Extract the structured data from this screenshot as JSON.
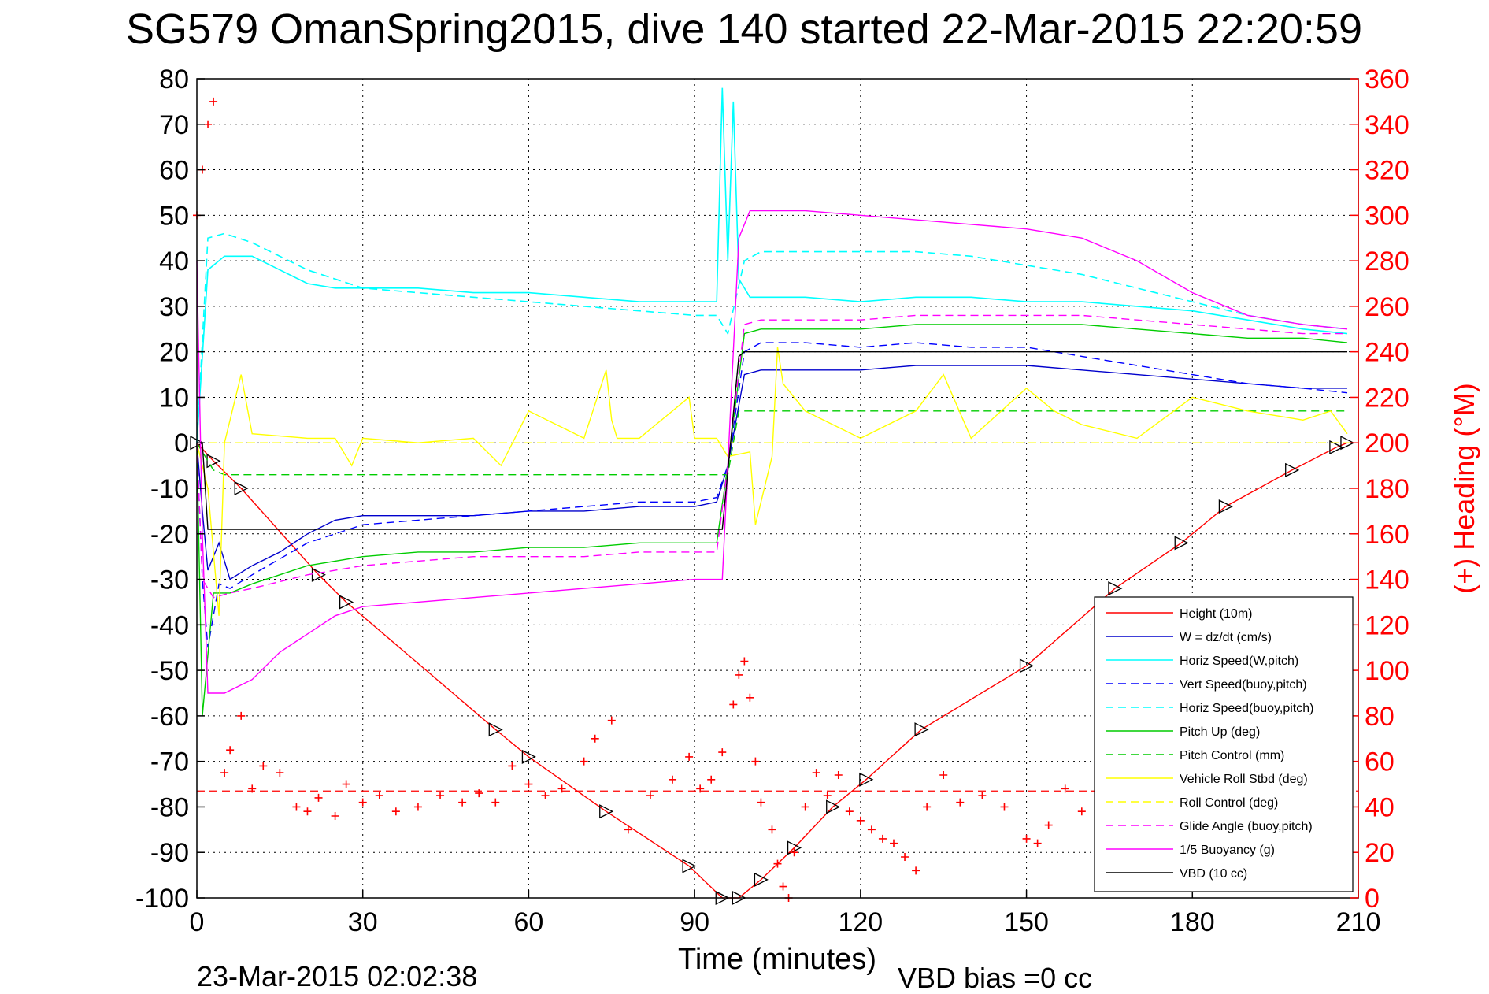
{
  "title": "SG579 OmanSpring2015, dive 140 started 22-Mar-2015 22:20:59",
  "footer": {
    "end_time": "23-Mar-2015 02:02:38",
    "vbd_bias": "VBD bias =0 cc"
  },
  "chart_data": {
    "type": "line",
    "xlabel": "Time (minutes)",
    "ylabel": "",
    "y2label": "(+) Heading (°M)",
    "xlim": [
      0,
      210
    ],
    "ylim": [
      -100,
      80
    ],
    "y2lim": [
      0,
      360
    ],
    "xticks": [
      0,
      30,
      60,
      90,
      120,
      150,
      180,
      210
    ],
    "yticks": [
      80,
      70,
      60,
      50,
      40,
      30,
      20,
      10,
      0,
      -10,
      -20,
      -30,
      -40,
      -50,
      -60,
      -70,
      -80,
      -90,
      -100
    ],
    "y2ticks": [
      360,
      340,
      320,
      300,
      280,
      260,
      240,
      220,
      200,
      180,
      160,
      140,
      120,
      100,
      80,
      60,
      40,
      20,
      0
    ],
    "grid": true,
    "legend_position": "lower-right",
    "series": [
      {
        "name": "Height (10m)",
        "color": "#ff0000",
        "style": "solid",
        "marker": "triangle",
        "x": [
          0,
          3,
          8,
          22,
          27,
          54,
          60,
          74,
          89,
          95,
          98,
          102,
          108,
          115,
          121,
          131,
          150,
          166,
          178,
          186,
          198,
          206,
          208
        ],
        "y": [
          0,
          -4,
          -10,
          -29,
          -35,
          -63,
          -69,
          -81,
          -93,
          -100,
          -100,
          -96,
          -89,
          -80,
          -74,
          -63,
          -49,
          -32,
          -22,
          -14,
          -6,
          -1,
          0
        ]
      },
      {
        "name": "W = dz/dt (cm/s)",
        "color": "#0000cc",
        "style": "solid",
        "x": [
          0,
          1,
          2,
          4,
          6,
          10,
          15,
          20,
          25,
          30,
          40,
          50,
          60,
          70,
          80,
          90,
          94,
          96,
          99,
          102,
          110,
          120,
          130,
          140,
          150,
          160,
          170,
          180,
          190,
          200,
          208
        ],
        "y": [
          0,
          -15,
          -28,
          -22,
          -30,
          -27,
          -24,
          -20,
          -17,
          -16,
          -16,
          -16,
          -15,
          -15,
          -14,
          -14,
          -13,
          -5,
          15,
          16,
          16,
          16,
          17,
          17,
          17,
          16,
          15,
          14,
          13,
          12,
          12
        ]
      },
      {
        "name": "Horiz Speed(W,pitch)",
        "color": "#00ffff",
        "style": "solid",
        "x": [
          0,
          2,
          5,
          10,
          15,
          20,
          25,
          30,
          40,
          50,
          60,
          70,
          80,
          90,
          94,
          95,
          96,
          97,
          98,
          100,
          110,
          120,
          130,
          140,
          150,
          160,
          170,
          180,
          190,
          200,
          208
        ],
        "y": [
          0,
          38,
          41,
          41,
          38,
          35,
          34,
          34,
          34,
          33,
          33,
          32,
          31,
          31,
          31,
          78,
          40,
          75,
          36,
          32,
          32,
          31,
          32,
          32,
          31,
          31,
          30,
          29,
          27,
          25,
          24
        ]
      },
      {
        "name": "Vert Speed(buoy,pitch)",
        "color": "#0000ff",
        "style": "dashed",
        "x": [
          0,
          1,
          2,
          4,
          6,
          10,
          20,
          30,
          40,
          50,
          60,
          70,
          80,
          90,
          94,
          96,
          99,
          102,
          110,
          120,
          130,
          140,
          150,
          160,
          170,
          180,
          190,
          200,
          208
        ],
        "y": [
          0,
          -30,
          -45,
          -31,
          -32,
          -29,
          -22,
          -18,
          -17,
          -16,
          -15,
          -14,
          -13,
          -13,
          -12,
          -5,
          20,
          22,
          22,
          21,
          22,
          21,
          21,
          19,
          17,
          15,
          13,
          12,
          11
        ]
      },
      {
        "name": "Horiz Speed(buoy,pitch)",
        "color": "#00ffff",
        "style": "dashed",
        "x": [
          0,
          2,
          5,
          10,
          20,
          30,
          40,
          50,
          60,
          70,
          80,
          90,
          94,
          96,
          99,
          102,
          110,
          120,
          130,
          140,
          150,
          160,
          170,
          180,
          190,
          200,
          208
        ],
        "y": [
          0,
          45,
          46,
          44,
          38,
          34,
          33,
          32,
          31,
          30,
          29,
          28,
          28,
          24,
          40,
          42,
          42,
          42,
          42,
          41,
          39,
          37,
          34,
          31,
          28,
          26,
          25
        ]
      },
      {
        "name": "Pitch Up (deg)",
        "color": "#00cc00",
        "style": "solid",
        "x": [
          0,
          1,
          3,
          6,
          10,
          20,
          30,
          40,
          50,
          60,
          70,
          80,
          90,
          94,
          96,
          99,
          102,
          110,
          120,
          130,
          140,
          150,
          160,
          170,
          180,
          190,
          200,
          208
        ],
        "y": [
          0,
          -60,
          -33,
          -33,
          -31,
          -27,
          -25,
          -24,
          -24,
          -23,
          -23,
          -22,
          -22,
          -22,
          -5,
          24,
          25,
          25,
          25,
          26,
          26,
          26,
          26,
          25,
          24,
          23,
          23,
          22
        ]
      },
      {
        "name": "Pitch Control (mm)",
        "color": "#00cc00",
        "style": "dashed",
        "x": [
          0,
          3,
          5,
          10,
          20,
          40,
          60,
          80,
          94,
          96,
          98,
          100,
          120,
          140,
          160,
          180,
          200,
          208
        ],
        "y": [
          0,
          -6,
          -7,
          -7,
          -7,
          -7,
          -7,
          -7,
          -7,
          -7,
          7,
          7,
          7,
          7,
          7,
          7,
          7,
          7
        ]
      },
      {
        "name": "Vehicle Roll Stbd (deg)",
        "color": "#ffff00",
        "style": "solid",
        "x": [
          0,
          2,
          4,
          5,
          8,
          10,
          20,
          25,
          28,
          30,
          40,
          50,
          55,
          60,
          70,
          74,
          75,
          76,
          80,
          89,
          90,
          91,
          94,
          96,
          100,
          101,
          104,
          105,
          106,
          110,
          115,
          120,
          130,
          135,
          140,
          150,
          155,
          160,
          170,
          180,
          190,
          200,
          205,
          208
        ],
        "y": [
          0,
          -10,
          -38,
          0,
          15,
          2,
          1,
          1,
          -5,
          1,
          0,
          1,
          -5,
          7,
          1,
          16,
          5,
          1,
          1,
          10,
          1,
          1,
          1,
          -3,
          -2,
          -18,
          -3,
          21,
          13,
          7,
          4,
          1,
          7,
          15,
          1,
          12,
          7,
          4,
          1,
          10,
          7,
          5,
          7,
          2
        ]
      },
      {
        "name": "Roll Control (deg)",
        "color": "#ffff00",
        "style": "dashed",
        "x": [
          0,
          210
        ],
        "y": [
          0,
          0
        ]
      },
      {
        "name": "Glide Angle (buoy,pitch)",
        "color": "#ff00ff",
        "style": "dashed",
        "x": [
          0,
          1,
          3,
          6,
          10,
          20,
          30,
          40,
          50,
          60,
          70,
          80,
          90,
          94,
          96,
          99,
          102,
          110,
          120,
          130,
          140,
          150,
          160,
          170,
          180,
          190,
          200,
          208
        ],
        "y": [
          0,
          -30,
          -34,
          -33,
          -32,
          -29,
          -27,
          -26,
          -25,
          -25,
          -25,
          -24,
          -24,
          -24,
          -5,
          26,
          27,
          27,
          27,
          28,
          28,
          28,
          28,
          27,
          26,
          25,
          24,
          24
        ]
      },
      {
        "name": "1/5 Buoyancy (g)",
        "color": "#ff00ff",
        "style": "solid",
        "x": [
          0,
          1,
          2,
          5,
          10,
          15,
          20,
          25,
          30,
          40,
          50,
          60,
          70,
          80,
          90,
          95,
          98,
          100,
          110,
          120,
          130,
          140,
          150,
          160,
          170,
          180,
          190,
          200,
          208
        ],
        "y": [
          40,
          -20,
          -55,
          -55,
          -52,
          -46,
          -42,
          -38,
          -36,
          -35,
          -34,
          -33,
          -32,
          -31,
          -30,
          -30,
          45,
          51,
          51,
          50,
          49,
          48,
          47,
          45,
          40,
          33,
          28,
          26,
          25
        ]
      },
      {
        "name": "VBD (10 cc)",
        "color": "#000000",
        "style": "solid",
        "x": [
          0,
          1,
          2,
          95,
          98,
          99,
          208
        ],
        "y": [
          0,
          0,
          -19,
          -19,
          19,
          20,
          20
        ]
      }
    ],
    "heading": {
      "name": "(+) Heading",
      "color": "#ff0000",
      "reference_line": 47,
      "x": [
        0,
        1,
        2,
        3,
        5,
        6,
        8,
        10,
        12,
        15,
        18,
        20,
        22,
        25,
        27,
        30,
        33,
        36,
        40,
        44,
        48,
        51,
        54,
        57,
        60,
        63,
        66,
        70,
        72,
        75,
        78,
        82,
        86,
        89,
        91,
        93,
        95,
        97,
        98,
        99,
        100,
        101,
        102,
        104,
        105,
        106,
        107,
        108,
        110,
        112,
        114,
        116,
        118,
        120,
        122,
        124,
        126,
        128,
        130,
        132,
        135,
        138,
        142,
        146,
        150,
        152,
        154,
        157,
        160,
        164,
        168,
        172,
        176,
        180,
        184,
        188,
        192,
        196,
        200,
        204,
        207
      ],
      "y": [
        300,
        320,
        340,
        350,
        55,
        65,
        80,
        48,
        58,
        55,
        40,
        38,
        44,
        36,
        50,
        42,
        45,
        38,
        40,
        45,
        42,
        46,
        42,
        58,
        50,
        45,
        48,
        60,
        70,
        78,
        30,
        45,
        52,
        62,
        48,
        52,
        64,
        85,
        98,
        104,
        88,
        60,
        42,
        30,
        15,
        5,
        0,
        20,
        40,
        55,
        45,
        54,
        38,
        34,
        30,
        26,
        24,
        18,
        12,
        40,
        54,
        42,
        45,
        40,
        26,
        24,
        32,
        48,
        38,
        45,
        42,
        40,
        46,
        40,
        44,
        42,
        38,
        40,
        42,
        44,
        46
      ]
    }
  }
}
